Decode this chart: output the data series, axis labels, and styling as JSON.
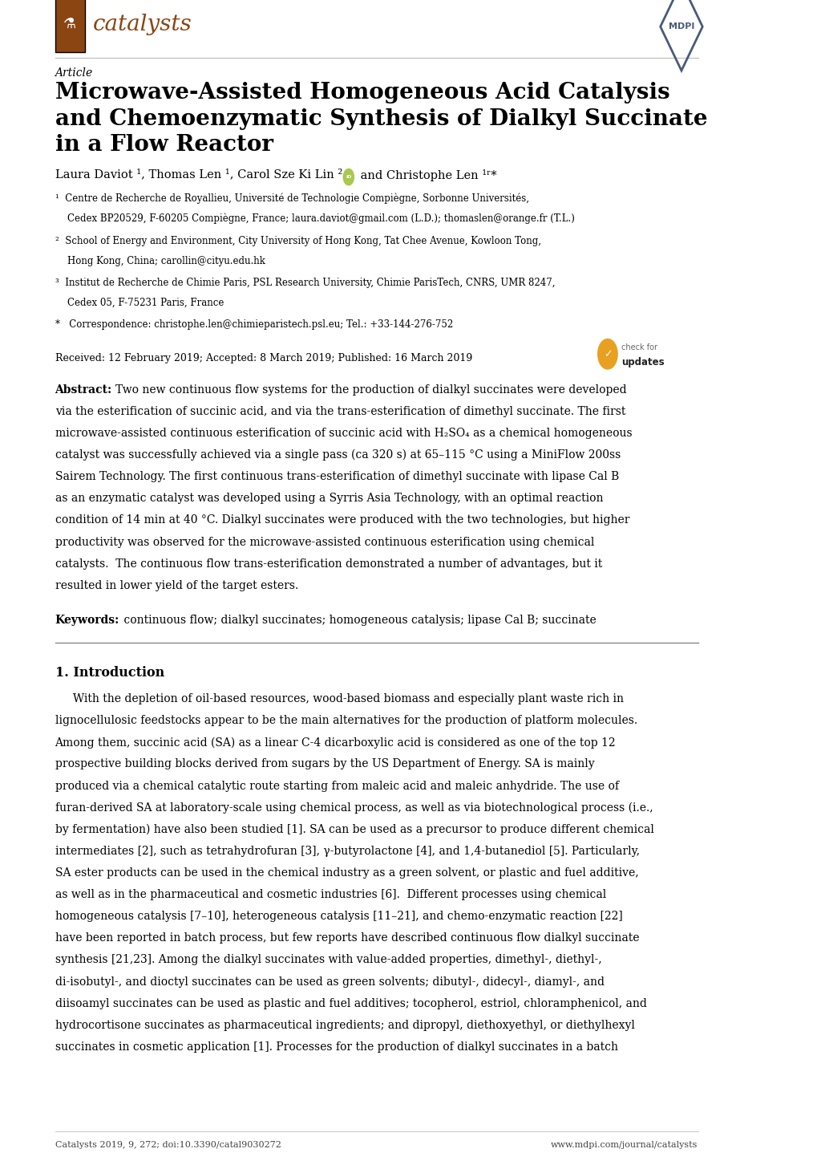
{
  "background_color": "#ffffff",
  "page_width": 10.2,
  "page_height": 14.42,
  "catalysts_logo_color": "#8B4513",
  "catalysts_text": "catalysts",
  "mdpi_color": "#4a5a7a",
  "article_label": "Article",
  "title": "Microwave-Assisted Homogeneous Acid Catalysis\nand Chemoenzymatic Synthesis of Dialkyl Succinate\nin a Flow Reactor",
  "received": "Received: 12 February 2019; Accepted: 8 March 2019; Published: 16 March 2019",
  "abstract_label": "Abstract:",
  "abstract_lines": [
    "Two new continuous flow systems for the production of dialkyl succinates were developed",
    "via the esterification of succinic acid, and via the trans-esterification of dimethyl succinate. The first",
    "microwave-assisted continuous esterification of succinic acid with H₂SO₄ as a chemical homogeneous",
    "catalyst was successfully achieved via a single pass (ca 320 s) at 65–115 °C using a MiniFlow 200ss",
    "Sairem Technology. The first continuous trans-esterification of dimethyl succinate with lipase Cal B",
    "as an enzymatic catalyst was developed using a Syrris Asia Technology, with an optimal reaction",
    "condition of 14 min at 40 °C. Dialkyl succinates were produced with the two technologies, but higher",
    "productivity was observed for the microwave-assisted continuous esterification using chemical",
    "catalysts.  The continuous flow trans-esterification demonstrated a number of advantages, but it",
    "resulted in lower yield of the target esters."
  ],
  "keywords_label": "Keywords:",
  "keywords_text": " continuous flow; dialkyl succinates; homogeneous catalysis; lipase Cal B; succinate",
  "section1_title": "1. Introduction",
  "intro_lines": [
    "     With the depletion of oil-based resources, wood-based biomass and especially plant waste rich in",
    "lignocellulosic feedstocks appear to be the main alternatives for the production of platform molecules.",
    "Among them, succinic acid (SA) as a linear C-4 dicarboxylic acid is considered as one of the top 12",
    "prospective building blocks derived from sugars by the US Department of Energy. SA is mainly",
    "produced via a chemical catalytic route starting from maleic acid and maleic anhydride. The use of",
    "furan-derived SA at laboratory-scale using chemical process, as well as via biotechnological process (i.e.,",
    "by fermentation) have also been studied [1]. SA can be used as a precursor to produce different chemical",
    "intermediates [2], such as tetrahydrofuran [3], γ-butyrolactone [4], and 1,4-butanediol [5]. Particularly,",
    "SA ester products can be used in the chemical industry as a green solvent, or plastic and fuel additive,",
    "as well as in the pharmaceutical and cosmetic industries [6].  Different processes using chemical",
    "homogeneous catalysis [7–10], heterogeneous catalysis [11–21], and chemo-enzymatic reaction [22]",
    "have been reported in batch process, but few reports have described continuous flow dialkyl succinate",
    "synthesis [21,23]. Among the dialkyl succinates with value-added properties, dimethyl-, diethyl-,",
    "di-isobutyl-, and dioctyl succinates can be used as green solvents; dibutyl-, didecyl-, diamyl-, and",
    "diisoamyl succinates can be used as plastic and fuel additives; tocopherol, estriol, chloramphenicol, and",
    "hydrocortisone succinates as pharmaceutical ingredients; and dipropyl, diethoxyethyl, or diethylhexyl",
    "succinates in cosmetic application [1]. Processes for the production of dialkyl succinates in a batch"
  ],
  "footer_left": "Catalysts 2019, 9, 272; doi:10.3390/catal9030272",
  "footer_right": "www.mdpi.com/journal/catalysts",
  "lm": 0.073,
  "rm": 0.927
}
